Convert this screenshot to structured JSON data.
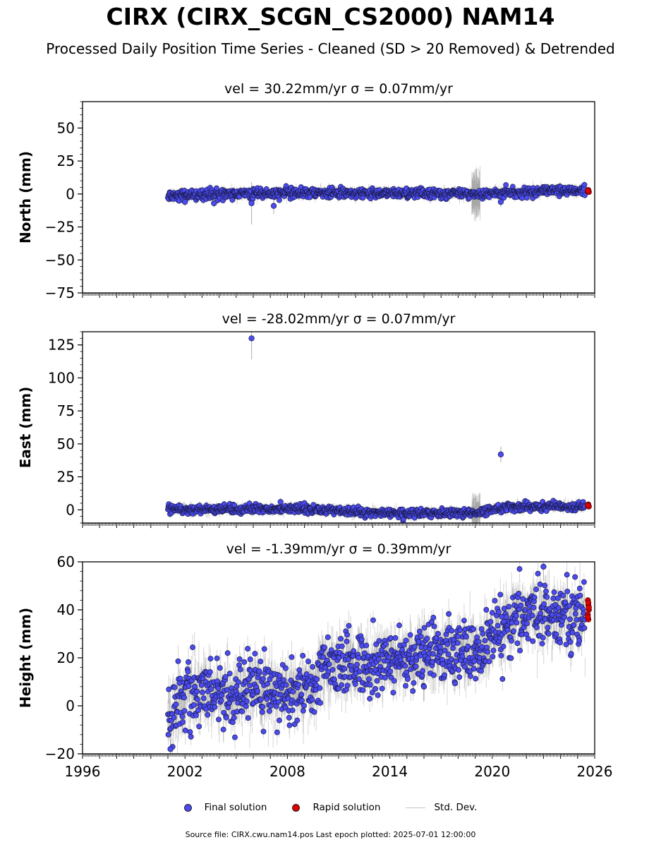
{
  "title": "CIRX (CIRX_SCGN_CS2000) NAM14",
  "subtitle": "Processed Daily Position Time Series - Cleaned (SD > 20 Removed) & Detrended",
  "colors": {
    "final": "#4b4bf0",
    "rapid": "#e00000",
    "stddev": "#bdbdbd",
    "edge": "#1a1a4a"
  },
  "legend": {
    "final": "Final solution",
    "rapid": "Rapid solution",
    "stddev": "Std. Dev."
  },
  "footer": "Source file: CIRX.cwu.nam14.pos  Last epoch plotted: 2025-07-01 12:00:00",
  "chart_data": [
    {
      "type": "scatter",
      "title": "vel = 30.22mm/yr   σ = 0.07mm/yr",
      "ylabel": "North (mm)",
      "xlim": [
        1996,
        2026
      ],
      "ylim": [
        -75,
        70
      ],
      "yticks": [
        50,
        25,
        0,
        -25,
        -50,
        -75
      ],
      "ytick_labels": [
        "50",
        "25",
        "0",
        "−25",
        "−50",
        "−75"
      ],
      "trend": {
        "x": [
          2001.0,
          2010.0,
          2019.0,
          2025.45
        ],
        "y": [
          -1,
          1,
          0,
          3
        ]
      },
      "noise": 1.8,
      "err": 2.5,
      "outliers": [
        {
          "x": 2002.0,
          "y": -6,
          "err": 3
        },
        {
          "x": 2003.7,
          "y": -7,
          "err": 3
        },
        {
          "x": 2005.9,
          "y": -7,
          "err": 16
        },
        {
          "x": 2007.2,
          "y": -9,
          "err": 6
        },
        {
          "x": 2020.5,
          "y": -6,
          "err": 4
        }
      ],
      "bursts": [
        {
          "x0": 2018.8,
          "x1": 2019.3,
          "err": 14
        }
      ],
      "rapid": {
        "x": 2025.6,
        "y": [
          2,
          3,
          1.5,
          2.5
        ]
      }
    },
    {
      "type": "scatter",
      "title": "vel = -28.02mm/yr   σ = 0.07mm/yr",
      "ylabel": "East (mm)",
      "xlim": [
        1996,
        2026
      ],
      "ylim": [
        -10,
        135
      ],
      "yticks": [
        125,
        100,
        75,
        50,
        25,
        0
      ],
      "ytick_labels": [
        "125",
        "100",
        "75",
        "50",
        "25",
        "0"
      ],
      "trend": {
        "x": [
          2001.0,
          2008.0,
          2015.0,
          2019.0,
          2021.0,
          2025.45
        ],
        "y": [
          0,
          1,
          -3,
          -2,
          2,
          3
        ]
      },
      "noise": 1.6,
      "err": 2.5,
      "outliers": [
        {
          "x": 2005.9,
          "y": 130,
          "err": 16
        },
        {
          "x": 2020.5,
          "y": 42,
          "err": 6
        },
        {
          "x": 2007.6,
          "y": 6,
          "err": 3
        }
      ],
      "bursts": [
        {
          "x0": 2018.8,
          "x1": 2019.3,
          "err": 10
        }
      ],
      "rapid": {
        "x": 2025.6,
        "y": [
          3,
          4,
          2.5,
          3.5
        ]
      }
    },
    {
      "type": "scatter",
      "title": "vel = -1.39mm/yr   σ = 0.39mm/yr",
      "ylabel": "Height (mm)",
      "xlim": [
        1996,
        2026
      ],
      "ylim": [
        -20,
        60
      ],
      "yticks": [
        60,
        40,
        20,
        0,
        -20
      ],
      "ytick_labels": [
        "60",
        "40",
        "20",
        "0",
        "−20"
      ],
      "xticks": [
        1996,
        2002,
        2008,
        2014,
        2020,
        2026
      ],
      "trend": {
        "x": [
          2001.0,
          2001.4,
          2002.5,
          2009.5,
          2010.0,
          2019.0,
          2019.3,
          2022.0,
          2025.45
        ],
        "y": [
          -5,
          0,
          5,
          6,
          16,
          23,
          23,
          39,
          38
        ]
      },
      "noise": 6.5,
      "err": 5,
      "outliers": [
        {
          "x": 2001.15,
          "y": -18,
          "err": 4
        },
        {
          "x": 2016.0,
          "y": 8,
          "err": 6
        },
        {
          "x": 2023.0,
          "y": 58,
          "err": 6
        }
      ],
      "bursts": [],
      "rapid": {
        "x": 2025.6,
        "y": [
          44,
          42,
          40,
          38,
          36,
          41,
          37,
          43
        ]
      }
    }
  ]
}
